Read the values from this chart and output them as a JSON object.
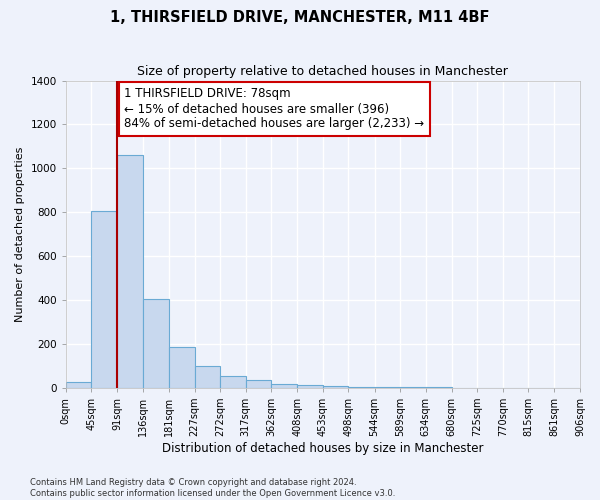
{
  "title": "1, THIRSFIELD DRIVE, MANCHESTER, M11 4BF",
  "subtitle": "Size of property relative to detached houses in Manchester",
  "xlabel": "Distribution of detached houses by size in Manchester",
  "ylabel": "Number of detached properties",
  "footnote": "Contains HM Land Registry data © Crown copyright and database right 2024.\nContains public sector information licensed under the Open Government Licence v3.0.",
  "bin_edges": [
    0,
    45,
    91,
    136,
    181,
    227,
    272,
    317,
    362,
    408,
    453,
    498,
    544,
    589,
    634,
    680,
    725,
    770,
    815,
    861,
    906
  ],
  "bin_labels": [
    "0sqm",
    "45sqm",
    "91sqm",
    "136sqm",
    "181sqm",
    "227sqm",
    "272sqm",
    "317sqm",
    "362sqm",
    "408sqm",
    "453sqm",
    "498sqm",
    "544sqm",
    "589sqm",
    "634sqm",
    "680sqm",
    "725sqm",
    "770sqm",
    "815sqm",
    "861sqm",
    "906sqm"
  ],
  "bar_heights": [
    25,
    805,
    1060,
    405,
    185,
    100,
    55,
    35,
    20,
    12,
    8,
    5,
    3,
    2,
    2,
    1,
    0,
    0,
    0,
    0
  ],
  "bar_color": "#c8d8ee",
  "bar_edgecolor": "#6aaad4",
  "vline_color": "#aa0000",
  "vline_x": 91,
  "box_color": "#cc0000",
  "ylim": [
    0,
    1400
  ],
  "yticks": [
    0,
    200,
    400,
    600,
    800,
    1000,
    1200,
    1400
  ],
  "background_color": "#eef2fb",
  "grid_color": "#ffffff",
  "title_fontsize": 10.5,
  "subtitle_fontsize": 9,
  "annotation_fontsize": 8.5,
  "ylabel_fontsize": 8,
  "xlabel_fontsize": 8.5,
  "tick_fontsize": 7,
  "annotation_text": "1 THIRSFIELD DRIVE: 78sqm\n← 15% of detached houses are smaller (396)\n84% of semi-detached houses are larger (2,233) →"
}
